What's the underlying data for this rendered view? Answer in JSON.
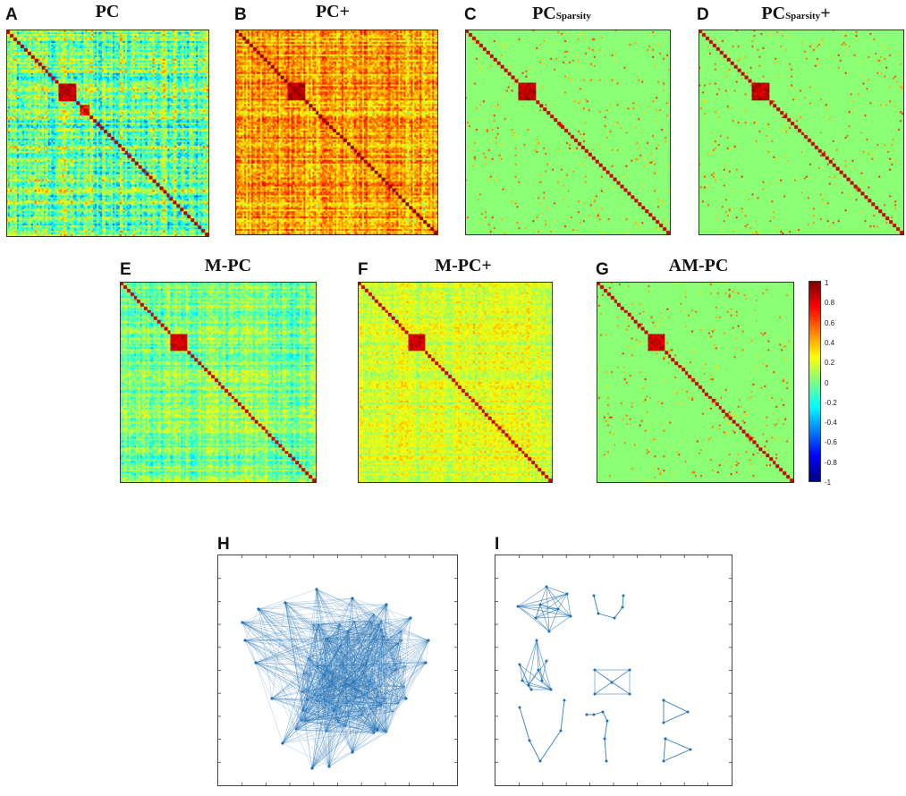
{
  "chart_data": [
    {
      "type": "heatmap",
      "panel": "A",
      "title": "PC",
      "matrix_variant": "dense_signed"
    },
    {
      "type": "heatmap",
      "panel": "B",
      "title": "PC+",
      "matrix_variant": "dense_positive"
    },
    {
      "type": "heatmap",
      "panel": "C",
      "title": "PC",
      "title_sub": "Sparsity",
      "matrix_variant": "sparse"
    },
    {
      "type": "heatmap",
      "panel": "D",
      "title": "PC",
      "title_sub": "Sparsity",
      "title_suffix": "+",
      "matrix_variant": "sparse_positive"
    },
    {
      "type": "heatmap",
      "panel": "E",
      "title": "M-PC",
      "matrix_variant": "dense_signed_mild"
    },
    {
      "type": "heatmap",
      "panel": "F",
      "title": "M-PC+",
      "matrix_variant": "dense_positive_mild"
    },
    {
      "type": "heatmap",
      "panel": "G",
      "title": "AM-PC",
      "matrix_variant": "sparse_adaptive"
    },
    {
      "type": "graph",
      "panel": "H",
      "description_variant": "dense"
    },
    {
      "type": "graph",
      "panel": "I",
      "description_variant": "modular"
    }
  ],
  "colorbar": {
    "range": [
      -1,
      1
    ],
    "ticks": [
      "1",
      "0.8",
      "0.6",
      "0.4",
      "0.2",
      "0",
      "-0.2",
      "-0.4",
      "-0.6",
      "-0.8",
      "-1"
    ]
  },
  "colors": {
    "edge": "#1f6fb5",
    "node": "#1f6fb5"
  }
}
